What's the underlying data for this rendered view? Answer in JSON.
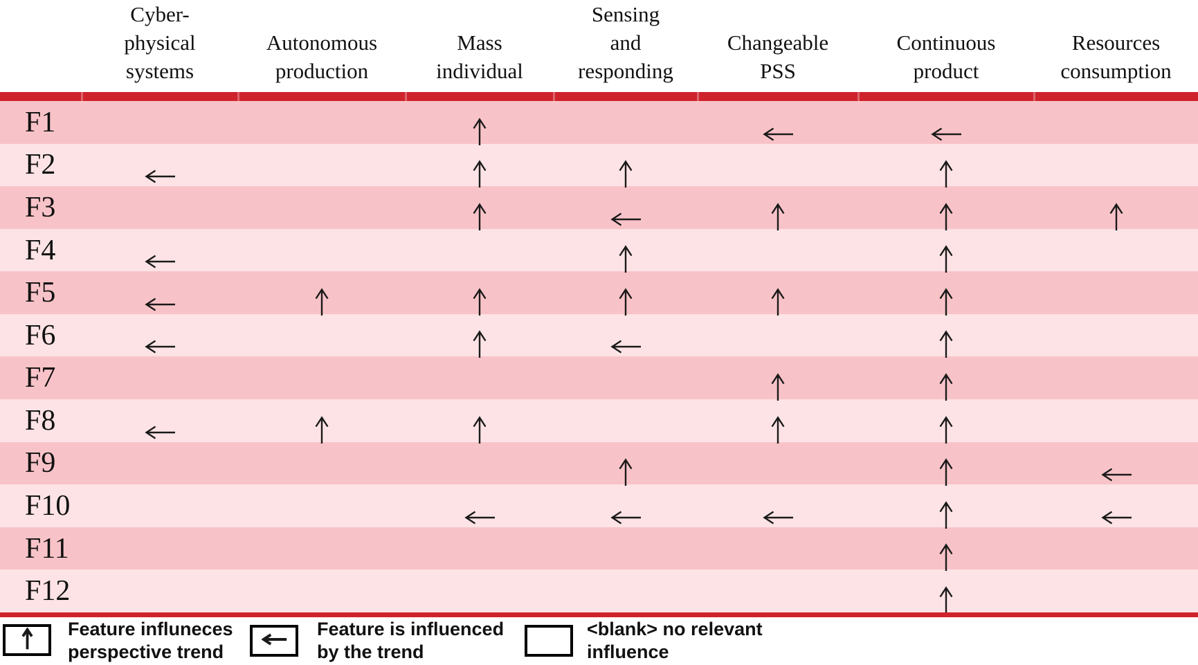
{
  "colors": {
    "rule_red": "#cf232b",
    "row_dark": "#f8c3c8",
    "row_light": "#fde3e5",
    "arrow_black": "#1a1a1a",
    "text_black": "#111111"
  },
  "symbols": {
    "up": "↑",
    "left": "←",
    "blank": ""
  },
  "chart_data": {
    "type": "table",
    "title": "",
    "columns": [
      {
        "key": "cyber_physical_systems",
        "label": "Cyber-physical systems",
        "label_lines": [
          "Cyber-",
          "physical",
          "systems"
        ]
      },
      {
        "key": "autonomous_production",
        "label": "Autonomous production",
        "label_lines": [
          "Autonomous",
          "production"
        ]
      },
      {
        "key": "mass_individual",
        "label": "Mass individual",
        "label_lines": [
          "Mass",
          "individual"
        ]
      },
      {
        "key": "sensing_and_responding",
        "label": "Sensing and responding",
        "label_lines": [
          "Sensing",
          "and",
          "responding"
        ]
      },
      {
        "key": "changeable_pss",
        "label": "Changeable PSS",
        "label_lines": [
          "Changeable",
          "PSS"
        ]
      },
      {
        "key": "continuous_product",
        "label": "Continuous product",
        "label_lines": [
          "Continuous",
          "product"
        ]
      },
      {
        "key": "resources_consumption",
        "label": "Resources consumption",
        "label_lines": [
          "Resources",
          "consumption"
        ]
      }
    ],
    "rows": [
      {
        "feature": "F1",
        "cells": [
          "",
          "",
          "up",
          "",
          "left",
          "left",
          ""
        ]
      },
      {
        "feature": "F2",
        "cells": [
          "left",
          "",
          "up",
          "up",
          "",
          "up",
          ""
        ]
      },
      {
        "feature": "F3",
        "cells": [
          "",
          "",
          "up",
          "left",
          "up",
          "up",
          "up"
        ]
      },
      {
        "feature": "F4",
        "cells": [
          "left",
          "",
          "",
          "up",
          "",
          "up",
          ""
        ]
      },
      {
        "feature": "F5",
        "cells": [
          "left",
          "up",
          "up",
          "up",
          "up",
          "up",
          ""
        ]
      },
      {
        "feature": "F6",
        "cells": [
          "left",
          "",
          "up",
          "left",
          "",
          "up",
          ""
        ]
      },
      {
        "feature": "F7",
        "cells": [
          "",
          "",
          "",
          "",
          "up",
          "up",
          ""
        ]
      },
      {
        "feature": "F8",
        "cells": [
          "left",
          "up",
          "up",
          "",
          "up",
          "up",
          ""
        ]
      },
      {
        "feature": "F9",
        "cells": [
          "",
          "",
          "",
          "up",
          "",
          "up",
          "left"
        ]
      },
      {
        "feature": "F10",
        "cells": [
          "",
          "",
          "left",
          "left",
          "left",
          "up",
          "left"
        ]
      },
      {
        "feature": "F11",
        "cells": [
          "",
          "",
          "",
          "",
          "",
          "up",
          ""
        ]
      },
      {
        "feature": "F12",
        "cells": [
          "",
          "",
          "",
          "",
          "",
          "up",
          ""
        ]
      }
    ]
  },
  "legend": {
    "items": [
      {
        "symbol": "up",
        "label": "Feature influneces perspective trend",
        "lines": [
          "Feature influneces",
          "perspective trend"
        ]
      },
      {
        "symbol": "left",
        "label": "Feature is influenced by the trend",
        "lines": [
          "Feature is influenced",
          "by the trend"
        ]
      },
      {
        "symbol": "blank",
        "label": "<blank> no relevant influence",
        "lines": [
          "<blank> no relevant",
          "influence"
        ]
      }
    ]
  }
}
